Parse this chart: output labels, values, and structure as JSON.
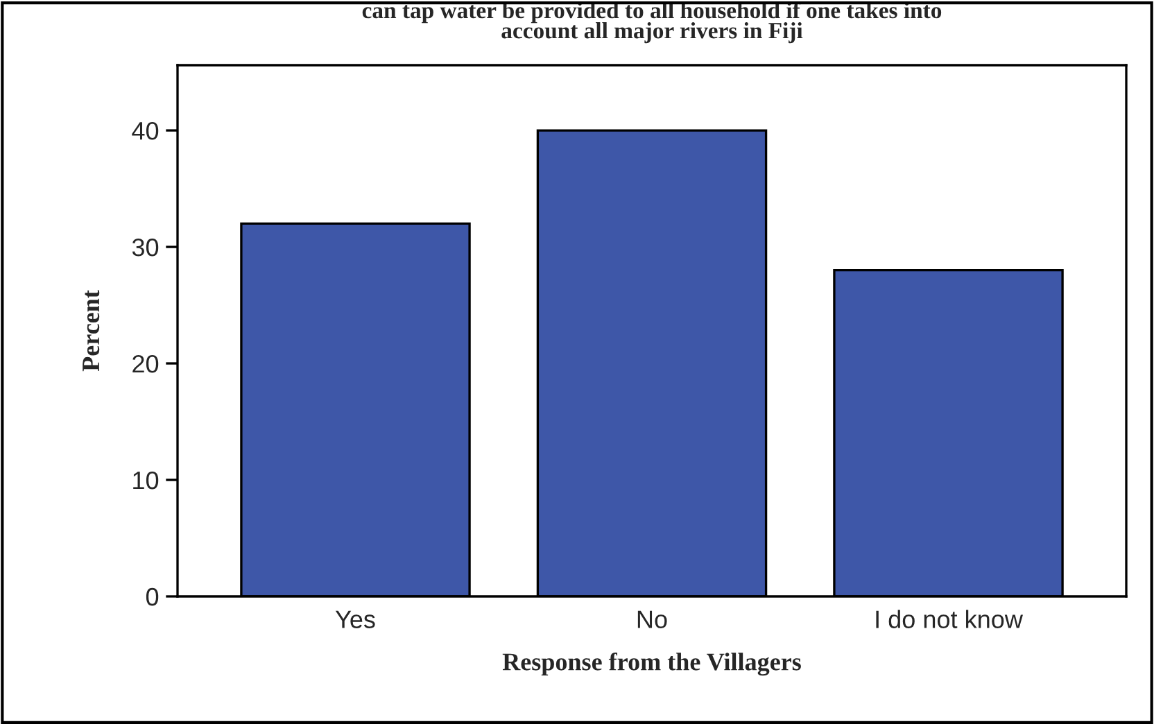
{
  "chart_data": {
    "type": "bar",
    "title": "can tap water be provided to all household if one takes into\naccount all major rivers in Fiji",
    "xlabel": "Response from the Villagers",
    "ylabel": "Percent",
    "categories": [
      "Yes",
      "No",
      "I do not know"
    ],
    "values": [
      32,
      40,
      28
    ],
    "color": "#3e57a8",
    "ylim": [
      0,
      45.6
    ],
    "yticks": [
      0,
      10,
      20,
      30,
      40
    ],
    "grid": false,
    "legend": false
  }
}
